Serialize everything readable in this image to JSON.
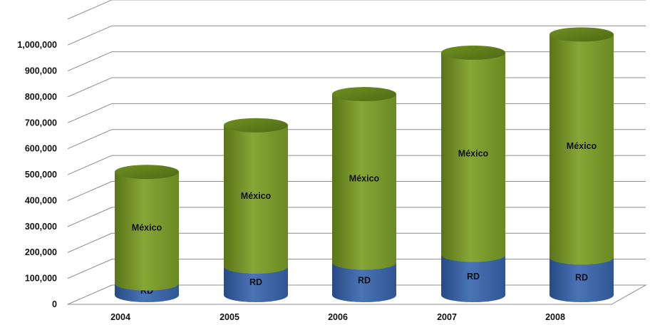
{
  "chart_data": {
    "type": "bar",
    "stacked": true,
    "style": "3d-cylinder",
    "categories": [
      "2004",
      "2005",
      "2006",
      "2007",
      "2008"
    ],
    "series": [
      {
        "name": "RD",
        "values": [
          45000,
          110000,
          125000,
          155000,
          145000
        ],
        "color": "#3f66a6"
      },
      {
        "name": "México",
        "values": [
          430000,
          545000,
          650000,
          780000,
          860000
        ],
        "color": "#7a9a2a"
      }
    ],
    "yticks": [
      "0",
      "100,000",
      "200,000",
      "300,000",
      "400,000",
      "500,000",
      "600,000",
      "700,000",
      "800,000",
      "900,000",
      "1,000,000"
    ],
    "ylim": [
      0,
      1100000
    ],
    "grid": true,
    "legend": "none"
  }
}
